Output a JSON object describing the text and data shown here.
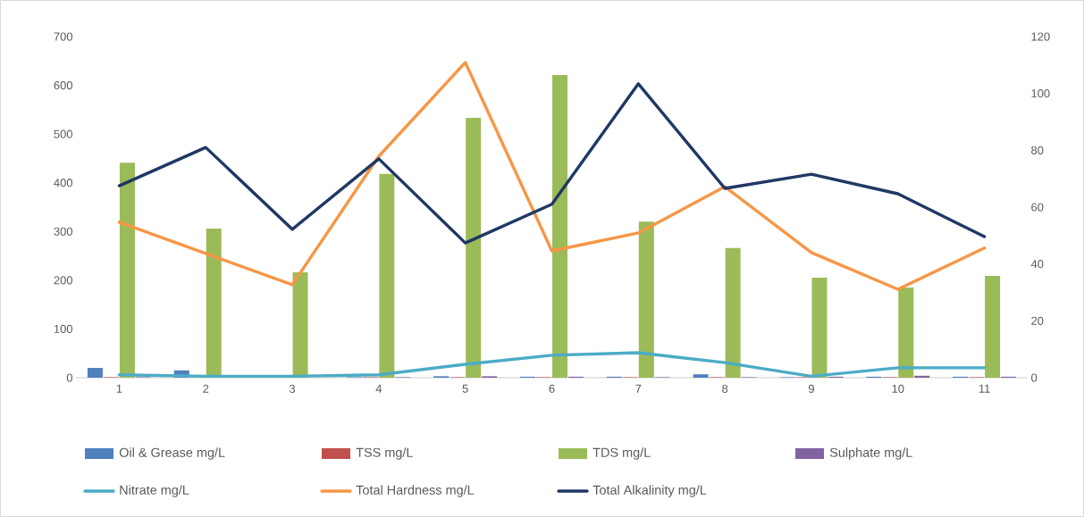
{
  "chart_data": {
    "type": "bar",
    "categories": [
      "1",
      "2",
      "3",
      "4",
      "5",
      "6",
      "7",
      "8",
      "9",
      "10",
      "11"
    ],
    "series": [
      {
        "name": "Oil & Grease mg/L",
        "color": "#4f81bd",
        "values": [
          20,
          15,
          null,
          1,
          3,
          2,
          2,
          7,
          1,
          2,
          2
        ]
      },
      {
        "name": "TSS mg/L",
        "color": "#c0504d",
        "values": [
          1,
          null,
          1,
          1,
          1,
          1,
          1,
          1,
          1,
          1,
          1
        ]
      },
      {
        "name": "TDS mg/L",
        "color": "#9bbb59",
        "values": [
          441,
          306,
          216,
          418,
          533,
          621,
          320,
          266,
          205,
          185,
          209
        ]
      },
      {
        "name": "Sulphate mg/L",
        "color": "#8064a2",
        "values": [
          1,
          1,
          null,
          1,
          3,
          2,
          1,
          1,
          2,
          4,
          2
        ]
      },
      {
        "name": "Nitrate mg/L",
        "type": "line",
        "axis": "y2",
        "color": "#4bacc6",
        "values": [
          1,
          0.5,
          0.5,
          1,
          4.7,
          7.9,
          8.8,
          5.3,
          0.5,
          3.5,
          3.5
        ]
      },
      {
        "name": "Total Hardness mg/L",
        "type": "line",
        "axis": "y2",
        "color": "#f79646",
        "values": [
          54.7,
          43.7,
          32.7,
          77.9,
          110.9,
          44.6,
          50.9,
          67.2,
          44,
          31.1,
          45.6
        ]
      },
      {
        "name": "Total Alkalinity mg/L",
        "type": "line",
        "axis": "y2",
        "color": "#1f3864",
        "values": [
          67.5,
          81,
          52.2,
          77,
          47.4,
          61,
          103.4,
          66.6,
          71.6,
          64.7,
          49.6
        ]
      }
    ],
    "ylim": [
      0,
      700
    ],
    "yticks": [
      0,
      100,
      200,
      300,
      400,
      500,
      600,
      700
    ],
    "y2lim": [
      0,
      120
    ],
    "y2ticks": [
      0,
      20,
      40,
      60,
      80,
      100,
      120
    ],
    "legend": "bottom"
  }
}
